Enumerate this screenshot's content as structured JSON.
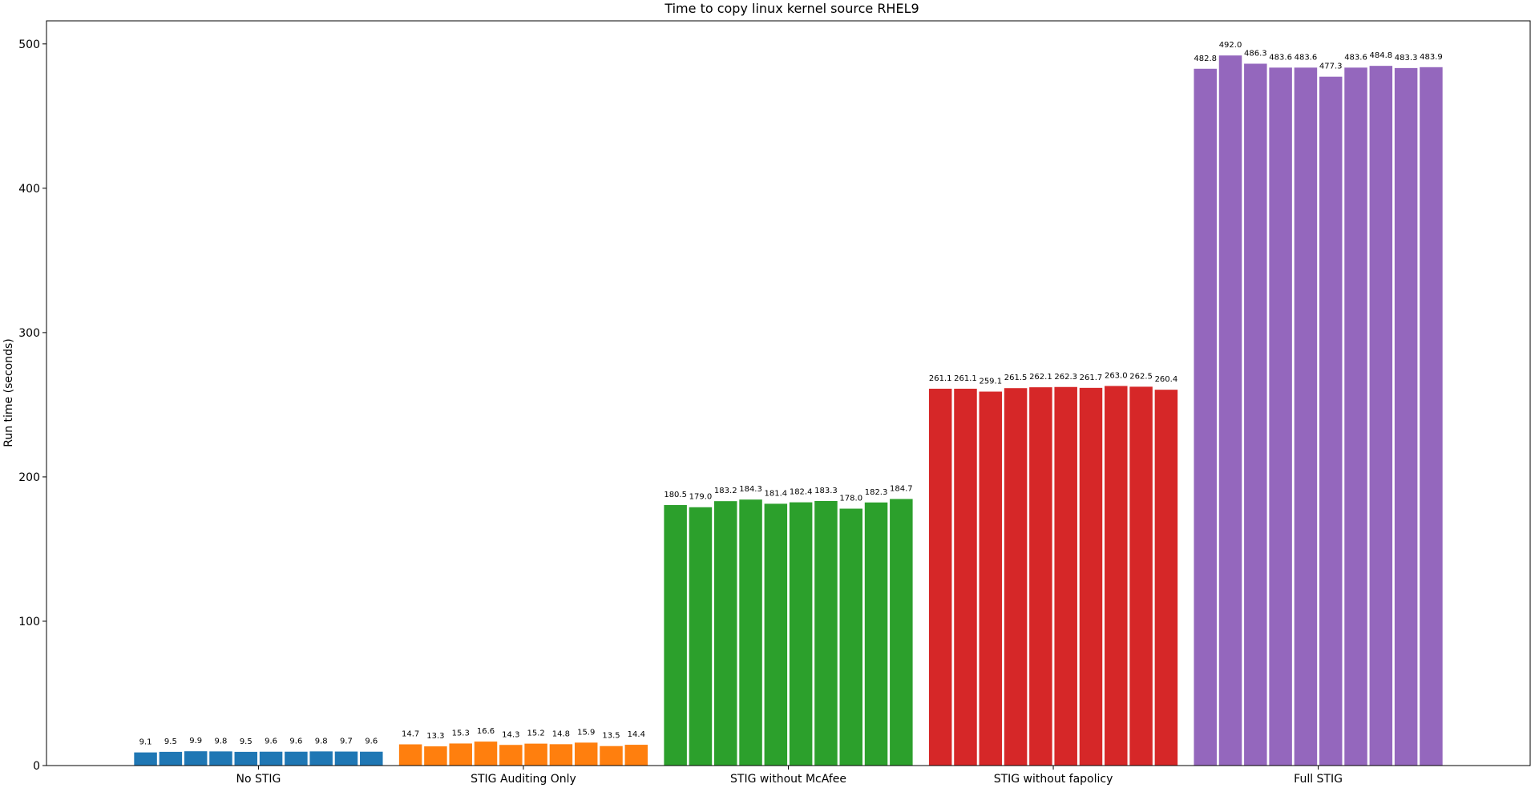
{
  "chart_data": {
    "type": "bar",
    "title": "Time to copy linux kernel source RHEL9",
    "xlabel": "",
    "ylabel": "Run time (seconds)",
    "ylim": [
      0,
      516
    ],
    "yticks": [
      0,
      100,
      200,
      300,
      400,
      500
    ],
    "grid": false,
    "legend": "none",
    "groups": [
      {
        "category": "No STIG",
        "color": "#1f77b4",
        "values": [
          9.1,
          9.5,
          9.9,
          9.8,
          9.5,
          9.6,
          9.6,
          9.8,
          9.7,
          9.6
        ]
      },
      {
        "category": "STIG Auditing Only",
        "color": "#ff7f0e",
        "values": [
          14.7,
          13.3,
          15.3,
          16.6,
          14.3,
          15.2,
          14.8,
          15.9,
          13.5,
          14.4
        ]
      },
      {
        "category": "STIG without McAfee",
        "color": "#2ca02c",
        "values": [
          180.5,
          179.0,
          183.2,
          184.3,
          181.4,
          182.4,
          183.3,
          178.0,
          182.3,
          184.7
        ]
      },
      {
        "category": "STIG without fapolicy",
        "color": "#d62728",
        "values": [
          261.1,
          261.1,
          259.1,
          261.5,
          262.1,
          262.3,
          261.7,
          263.0,
          262.5,
          260.4
        ]
      },
      {
        "category": "Full STIG",
        "color": "#9467bd",
        "values": [
          482.8,
          492.0,
          486.3,
          483.6,
          483.6,
          477.3,
          483.6,
          484.8,
          483.3,
          483.9
        ]
      }
    ]
  }
}
